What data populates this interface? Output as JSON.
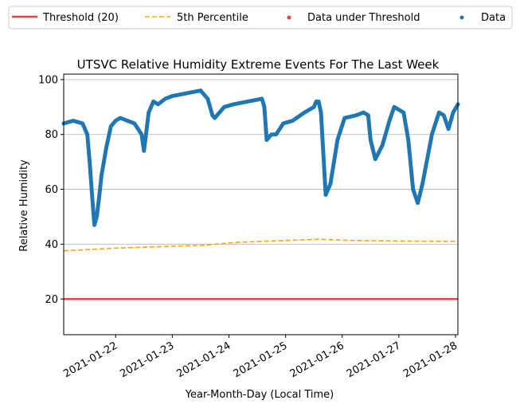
{
  "chart_data": {
    "type": "scatter",
    "title": "UTSVC Relative Humidity Extreme Events For The Last Week",
    "xlabel": "Year-Month-Day (Local Time)",
    "ylabel": "Relative Humidity",
    "x_ticks": [
      "2021-01-22",
      "2021-01-23",
      "2021-01-24",
      "2021-01-25",
      "2021-01-26",
      "2021-01-27",
      "2021-01-28"
    ],
    "xlim": [
      "2021-01-21T02:00",
      "2021-01-28T01:00"
    ],
    "y_ticks": [
      20,
      40,
      60,
      80,
      100
    ],
    "ylim": [
      7,
      102
    ],
    "grid": "horizontal",
    "legend": {
      "placement": "top",
      "entries": [
        "Threshold (20)",
        "5th Percentile",
        "Data under Threshold",
        "Data"
      ]
    },
    "colors": {
      "threshold": "#e8403a",
      "percentile": "#ffa500",
      "data": "#1f77b4",
      "under": "#e8403a"
    },
    "threshold": 20,
    "percentile_series": {
      "name": "5th Percentile",
      "x": [
        "2021-01-21T02:00",
        "2021-01-22T02:00",
        "2021-01-23T02:00",
        "2021-01-23T14:00",
        "2021-01-24T02:00",
        "2021-01-25T02:00",
        "2021-01-25T14:00",
        "2021-01-26T02:00",
        "2021-01-27T02:00",
        "2021-01-28T01:00"
      ],
      "y": [
        37.6,
        38.6,
        39.3,
        39.6,
        40.6,
        41.4,
        41.8,
        41.4,
        41.1,
        41.0
      ]
    },
    "data_series": {
      "name": "Data",
      "x": [
        "2021-01-21T02:00",
        "2021-01-21T06:00",
        "2021-01-21T10:00",
        "2021-01-21T12:00",
        "2021-01-21T13:00",
        "2021-01-21T14:00",
        "2021-01-21T15:00",
        "2021-01-21T16:00",
        "2021-01-21T17:00",
        "2021-01-21T18:00",
        "2021-01-21T20:00",
        "2021-01-21T22:00",
        "2021-01-22T00:00",
        "2021-01-22T02:00",
        "2021-01-22T05:00",
        "2021-01-22T08:00",
        "2021-01-22T11:00",
        "2021-01-22T12:00",
        "2021-01-22T14:00",
        "2021-01-22T16:00",
        "2021-01-22T18:00",
        "2021-01-22T21:00",
        "2021-01-23T00:00",
        "2021-01-23T06:00",
        "2021-01-23T12:00",
        "2021-01-23T15:00",
        "2021-01-23T17:00",
        "2021-01-23T18:00",
        "2021-01-23T20:00",
        "2021-01-23T22:00",
        "2021-01-24T02:00",
        "2021-01-24T08:00",
        "2021-01-24T14:00",
        "2021-01-24T15:00",
        "2021-01-24T16:00",
        "2021-01-24T18:00",
        "2021-01-24T20:00",
        "2021-01-24T23:00",
        "2021-01-25T03:00",
        "2021-01-25T08:00",
        "2021-01-25T12:00",
        "2021-01-25T13:00",
        "2021-01-25T14:00",
        "2021-01-25T15:00",
        "2021-01-25T17:00",
        "2021-01-25T19:00",
        "2021-01-25T22:00",
        "2021-01-26T01:00",
        "2021-01-26T06:00",
        "2021-01-26T09:00",
        "2021-01-26T11:00",
        "2021-01-26T12:00",
        "2021-01-26T14:00",
        "2021-01-26T17:00",
        "2021-01-26T20:00",
        "2021-01-26T22:00",
        "2021-01-27T00:00",
        "2021-01-27T02:00",
        "2021-01-27T04:00",
        "2021-01-27T06:00",
        "2021-01-27T08:00",
        "2021-01-27T10:00",
        "2021-01-27T14:00",
        "2021-01-27T17:00",
        "2021-01-27T19:00",
        "2021-01-27T21:00",
        "2021-01-27T23:00",
        "2021-01-28T01:00"
      ],
      "y": [
        84,
        85,
        84,
        80,
        70,
        58,
        47,
        50,
        57,
        65,
        75,
        83,
        85,
        86,
        85,
        84,
        80,
        74,
        88,
        92,
        91,
        93,
        94,
        95,
        96,
        93,
        87,
        86,
        88,
        90,
        91,
        92,
        93,
        90,
        78,
        80,
        80,
        84,
        85,
        88,
        90,
        92,
        92,
        88,
        58,
        62,
        78,
        86,
        87,
        88,
        87,
        78,
        71,
        76,
        85,
        90,
        89,
        88,
        78,
        60,
        55,
        62,
        80,
        88,
        87,
        82,
        88,
        91
      ]
    },
    "under_threshold_series": {
      "name": "Data under Threshold",
      "x": [],
      "y": []
    }
  }
}
